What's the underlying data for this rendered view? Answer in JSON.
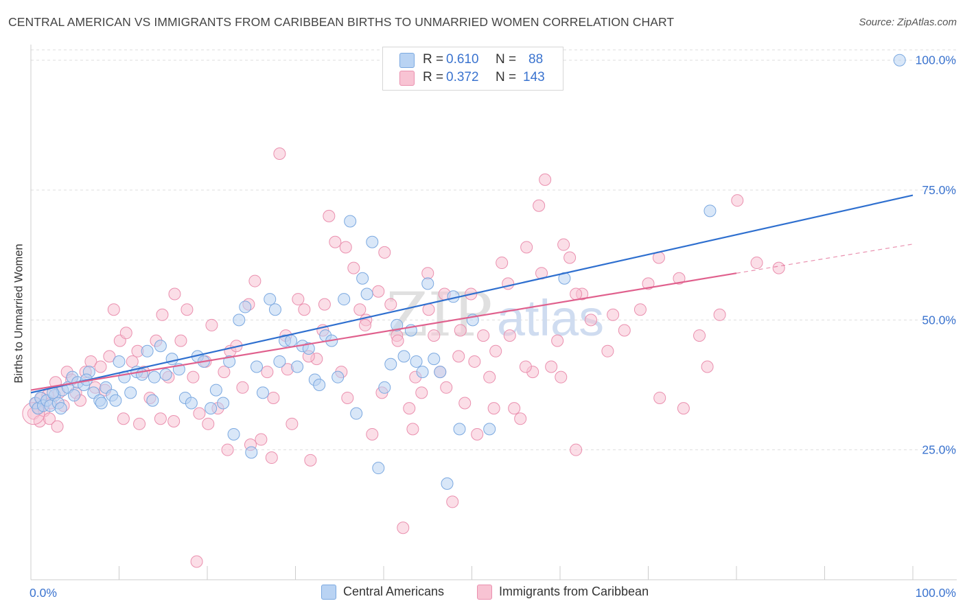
{
  "title": "CENTRAL AMERICAN VS IMMIGRANTS FROM CARIBBEAN BIRTHS TO UNMARRIED WOMEN CORRELATION CHART",
  "source": "Source: ZipAtlas.com",
  "watermark": {
    "zip": "ZIP",
    "atlas": "atlas"
  },
  "legend": {
    "blue": {
      "r_label": "R =",
      "r_value": "0.610",
      "n_label": "N =",
      "n_value": "88"
    },
    "pink": {
      "r_label": "R =",
      "r_value": "0.372",
      "n_label": "N =",
      "n_value": "143"
    }
  },
  "colors": {
    "blue_fill": "#b9d3f3",
    "blue_stroke": "#7aa8e0",
    "blue_line": "#2e6fcf",
    "pink_fill": "#f8c3d3",
    "pink_stroke": "#ea8fae",
    "pink_line": "#e0608d",
    "tick_label": "#3a73cf",
    "grid": "#dddddd"
  },
  "chart_data": {
    "type": "scatter",
    "title": "CENTRAL AMERICAN VS IMMIGRANTS FROM CARIBBEAN BIRTHS TO UNMARRIED WOMEN CORRELATION CHART",
    "xlabel": "",
    "ylabel": "Births to Unmarried Women",
    "xlim": [
      0,
      100
    ],
    "ylim": [
      0,
      103
    ],
    "x_tick_labels": [
      "0.0%",
      "100.0%"
    ],
    "y_ticks": [
      25,
      50,
      75,
      100
    ],
    "y_tick_labels": [
      "25.0%",
      "50.0%",
      "75.0%",
      "100.0%"
    ],
    "grid": "horizontal dashed",
    "legend_position": "top-center",
    "series": [
      {
        "name": "Central Americans",
        "r": 0.61,
        "n": 88,
        "trend": {
          "x": [
            0,
            100
          ],
          "y": [
            36.0,
            74.0
          ]
        },
        "points": [
          [
            0.5,
            34
          ],
          [
            0.8,
            33
          ],
          [
            1.1,
            35
          ],
          [
            1.4,
            33.5
          ],
          [
            1.8,
            34.5
          ],
          [
            2.2,
            33.5
          ],
          [
            2.7,
            35.5
          ],
          [
            3.1,
            34
          ],
          [
            3.6,
            36.5
          ],
          [
            4.2,
            37
          ],
          [
            4.7,
            39
          ],
          [
            5.3,
            38
          ],
          [
            6,
            37.5
          ],
          [
            6.6,
            40
          ],
          [
            7.1,
            36
          ],
          [
            7.8,
            34.5
          ],
          [
            8.5,
            37
          ],
          [
            9.2,
            35.5
          ],
          [
            10,
            42
          ],
          [
            10.6,
            39
          ],
          [
            11.3,
            36
          ],
          [
            12,
            40
          ],
          [
            12.6,
            39.5
          ],
          [
            13.2,
            44
          ],
          [
            14,
            39
          ],
          [
            14.7,
            45
          ],
          [
            15.3,
            39.5
          ],
          [
            16,
            42.5
          ],
          [
            16.8,
            40.5
          ],
          [
            17.5,
            35
          ],
          [
            18.2,
            34
          ],
          [
            18.9,
            43
          ],
          [
            19.6,
            42
          ],
          [
            20.4,
            33
          ],
          [
            21,
            36.5
          ],
          [
            21.8,
            34
          ],
          [
            22.5,
            42
          ],
          [
            23,
            28
          ],
          [
            23.6,
            50
          ],
          [
            24.3,
            52.5
          ],
          [
            25,
            24.5
          ],
          [
            25.6,
            41
          ],
          [
            26.3,
            36
          ],
          [
            27.1,
            54
          ],
          [
            27.7,
            52
          ],
          [
            28.2,
            42
          ],
          [
            28.8,
            46
          ],
          [
            29.5,
            46
          ],
          [
            30.2,
            41
          ],
          [
            30.8,
            45
          ],
          [
            31.5,
            44.5
          ],
          [
            32.2,
            38.5
          ],
          [
            32.7,
            37.5
          ],
          [
            33.4,
            47
          ],
          [
            34.1,
            46
          ],
          [
            34.8,
            39
          ],
          [
            35.5,
            54
          ],
          [
            36.2,
            69
          ],
          [
            36.9,
            32
          ],
          [
            37.6,
            58
          ],
          [
            38.1,
            55
          ],
          [
            38.7,
            65
          ],
          [
            39.4,
            21.5
          ],
          [
            40.1,
            37
          ],
          [
            40.8,
            41.5
          ],
          [
            41.5,
            49
          ],
          [
            42.3,
            43
          ],
          [
            43.1,
            48
          ],
          [
            43.7,
            42
          ],
          [
            44.4,
            40
          ],
          [
            45,
            57
          ],
          [
            45.7,
            42.5
          ],
          [
            46.4,
            40
          ],
          [
            47.2,
            18.5
          ],
          [
            47.9,
            54.5
          ],
          [
            48.6,
            29
          ],
          [
            50.1,
            50
          ],
          [
            52,
            29
          ],
          [
            60.5,
            58
          ],
          [
            77,
            71
          ],
          [
            98.5,
            100
          ],
          [
            4.9,
            35.5
          ],
          [
            9.6,
            34.5
          ],
          [
            3.4,
            33
          ],
          [
            8,
            34
          ],
          [
            13.8,
            34.5
          ],
          [
            2.5,
            36
          ],
          [
            6.3,
            38.5
          ]
        ]
      },
      {
        "name": "Immigrants from Caribbean",
        "r": 0.372,
        "n": 143,
        "trend": {
          "x": [
            0,
            80
          ],
          "y": [
            36.5,
            59.0
          ]
        },
        "trend_extension": {
          "x": [
            80,
            100
          ],
          "y": [
            59.0,
            64.6
          ]
        },
        "points": [
          [
            0.3,
            32
          ],
          [
            0.6,
            34
          ],
          [
            0.9,
            33
          ],
          [
            1.2,
            35
          ],
          [
            1.5,
            32.5
          ],
          [
            1.9,
            35.5
          ],
          [
            2.3,
            34
          ],
          [
            2.8,
            38
          ],
          [
            3.2,
            36
          ],
          [
            3.7,
            33.5
          ],
          [
            4.1,
            40
          ],
          [
            4.6,
            38.5
          ],
          [
            5.1,
            36
          ],
          [
            5.6,
            34.5
          ],
          [
            6.2,
            40
          ],
          [
            6.8,
            42
          ],
          [
            7.3,
            37
          ],
          [
            7.9,
            41
          ],
          [
            8.4,
            36.5
          ],
          [
            8.9,
            43
          ],
          [
            9.4,
            52
          ],
          [
            10.1,
            46
          ],
          [
            10.8,
            47.5
          ],
          [
            11.5,
            42
          ],
          [
            12.1,
            44
          ],
          [
            12.8,
            40
          ],
          [
            13.5,
            35
          ],
          [
            14.2,
            46
          ],
          [
            14.9,
            51
          ],
          [
            15.6,
            39
          ],
          [
            16.3,
            55
          ],
          [
            17,
            46
          ],
          [
            17.7,
            52
          ],
          [
            18.4,
            39
          ],
          [
            19.1,
            32
          ],
          [
            19.8,
            42
          ],
          [
            20.5,
            49
          ],
          [
            21.2,
            33
          ],
          [
            21.9,
            40
          ],
          [
            22.6,
            44
          ],
          [
            23.3,
            45
          ],
          [
            24,
            37
          ],
          [
            24.7,
            53
          ],
          [
            25.4,
            57.5
          ],
          [
            26.1,
            27
          ],
          [
            26.8,
            40
          ],
          [
            27.5,
            35
          ],
          [
            28.2,
            82
          ],
          [
            28.9,
            47
          ],
          [
            29.6,
            30
          ],
          [
            30.3,
            54
          ],
          [
            31,
            52
          ],
          [
            31.7,
            23
          ],
          [
            32.4,
            42.5
          ],
          [
            33.1,
            48
          ],
          [
            33.8,
            70
          ],
          [
            34.5,
            65
          ],
          [
            35.2,
            40
          ],
          [
            35.9,
            35
          ],
          [
            36.6,
            60
          ],
          [
            37.3,
            52
          ],
          [
            38,
            50
          ],
          [
            38.7,
            28
          ],
          [
            39.4,
            55.5
          ],
          [
            40.1,
            63
          ],
          [
            40.8,
            53
          ],
          [
            41.5,
            47
          ],
          [
            42.2,
            10
          ],
          [
            42.9,
            33
          ],
          [
            43.6,
            39
          ],
          [
            44.3,
            36
          ],
          [
            45,
            59
          ],
          [
            45.7,
            47
          ],
          [
            46.4,
            40
          ],
          [
            47.1,
            37
          ],
          [
            47.8,
            15
          ],
          [
            48.5,
            43
          ],
          [
            49.2,
            34
          ],
          [
            49.9,
            55
          ],
          [
            50.6,
            28
          ],
          [
            51.3,
            47
          ],
          [
            52,
            39
          ],
          [
            52.7,
            44
          ],
          [
            53.4,
            61
          ],
          [
            54.1,
            57
          ],
          [
            54.8,
            33
          ],
          [
            55.5,
            31
          ],
          [
            56.2,
            64
          ],
          [
            56.9,
            40
          ],
          [
            57.6,
            72
          ],
          [
            58.3,
            77
          ],
          [
            59,
            41
          ],
          [
            59.7,
            46
          ],
          [
            60.4,
            64.5
          ],
          [
            61.1,
            62
          ],
          [
            61.8,
            25
          ],
          [
            62.5,
            55
          ],
          [
            66,
            51
          ],
          [
            70,
            57
          ],
          [
            71.3,
            35
          ],
          [
            74,
            33
          ],
          [
            76.7,
            41
          ],
          [
            80.1,
            73
          ],
          [
            84.8,
            60
          ],
          [
            10.5,
            31
          ],
          [
            12.3,
            30
          ],
          [
            14.7,
            31
          ],
          [
            16.2,
            30.5
          ],
          [
            18.8,
            3.5
          ],
          [
            20.1,
            30
          ],
          [
            22.3,
            25
          ],
          [
            24.9,
            26
          ],
          [
            27.3,
            23.5
          ],
          [
            29.1,
            40.5
          ],
          [
            31.5,
            43
          ],
          [
            33.3,
            53
          ],
          [
            35.7,
            64
          ],
          [
            37.9,
            49
          ],
          [
            39.8,
            36
          ],
          [
            41.6,
            46
          ],
          [
            43.3,
            29
          ],
          [
            45.1,
            52
          ],
          [
            46.9,
            55
          ],
          [
            48.7,
            48
          ],
          [
            50.3,
            42
          ],
          [
            52.5,
            33
          ],
          [
            54.3,
            47
          ],
          [
            56.1,
            41
          ],
          [
            57.9,
            59
          ],
          [
            60.1,
            39
          ],
          [
            61.8,
            55
          ],
          [
            63.5,
            50
          ],
          [
            65.4,
            44
          ],
          [
            67.3,
            48
          ],
          [
            69.1,
            52
          ],
          [
            71.2,
            62
          ],
          [
            73.5,
            58
          ],
          [
            75.8,
            47
          ],
          [
            78.1,
            51
          ],
          [
            82.3,
            61
          ],
          [
            1.0,
            30.5
          ],
          [
            2.1,
            31
          ],
          [
            3.0,
            29.5
          ]
        ]
      }
    ]
  }
}
